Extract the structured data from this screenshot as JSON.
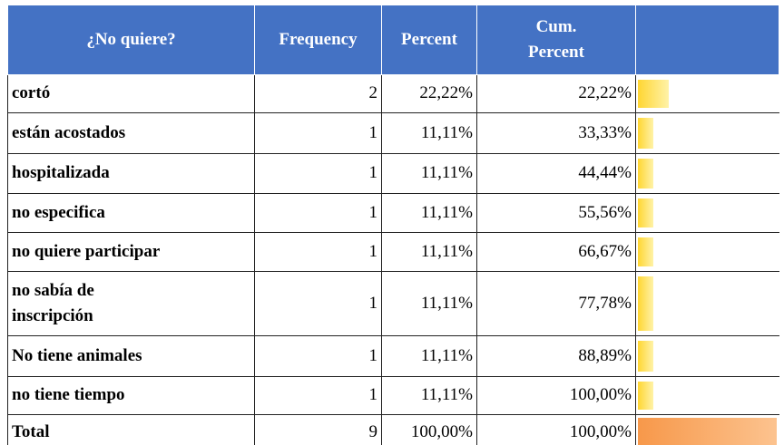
{
  "header": [
    "¿No quiere?",
    "Frequency",
    "Percent",
    "Cum.\nPercent"
  ],
  "rows": [
    [
      "cortó",
      2,
      "22,22%",
      "22,22%"
    ],
    [
      "están acostados",
      1,
      "11,11%",
      "33,33%"
    ],
    [
      "hospitalizada",
      1,
      "11,11%",
      "44,44%"
    ],
    [
      "no especifica",
      1,
      "11,11%",
      "55,56%"
    ],
    [
      "no quiere participar",
      1,
      "11,11%",
      "66,67%"
    ],
    [
      "no sabía de\ninscripción",
      1,
      "11,11%",
      "77,78%"
    ],
    [
      "No tiene animales",
      1,
      "11,11%",
      "88,89%"
    ],
    [
      "no tiene tiempo",
      1,
      "11,11%",
      "100,00%"
    ]
  ],
  "total": [
    "Total",
    9,
    "100,00%",
    "100,00%"
  ]
}
